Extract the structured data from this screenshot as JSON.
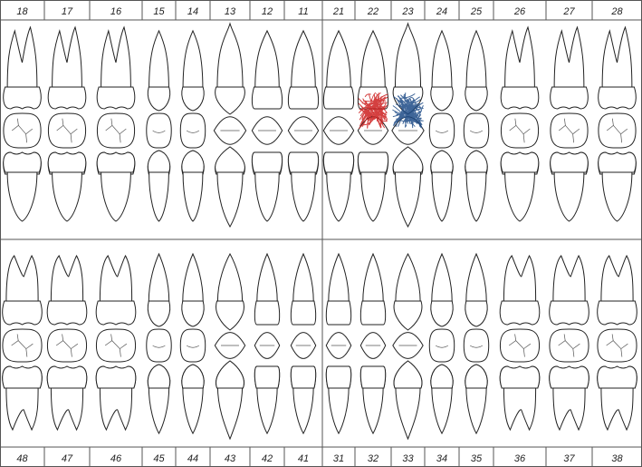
{
  "upper_numbers": [
    "18",
    "17",
    "16",
    "15",
    "14",
    "13",
    "12",
    "11",
    "21",
    "22",
    "23",
    "24",
    "25",
    "26",
    "27",
    "28"
  ],
  "lower_numbers": [
    "48",
    "47",
    "46",
    "45",
    "44",
    "43",
    "42",
    "41",
    "31",
    "32",
    "33",
    "34",
    "35",
    "36",
    "37",
    "38"
  ],
  "teeth_types": [
    "molar",
    "molar",
    "molar",
    "premolar",
    "premolar",
    "canine",
    "incisor",
    "incisor",
    "incisor",
    "incisor",
    "canine",
    "premolar",
    "premolar",
    "molar",
    "molar",
    "molar"
  ],
  "marks": [
    {
      "tooth": "22",
      "color": "#cc1f1f"
    },
    {
      "tooth": "23",
      "color": "#1c4a86"
    }
  ]
}
